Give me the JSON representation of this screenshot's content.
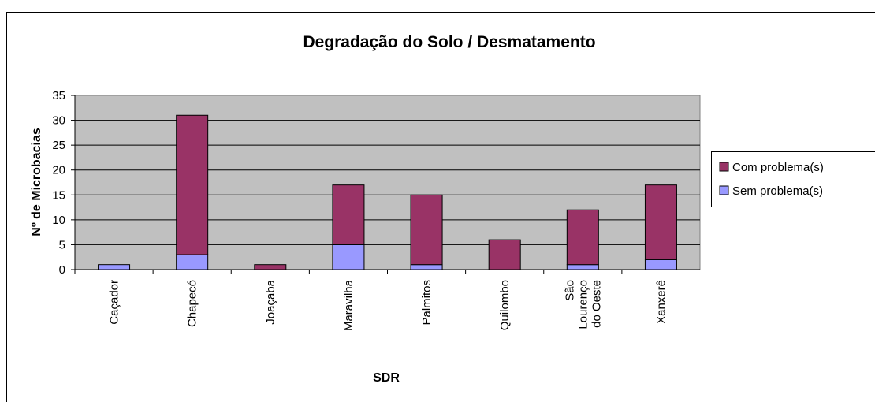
{
  "chart_data": {
    "type": "stacked_bar",
    "title": "Degradação do Solo / Desmatamento",
    "x_label": "SDR",
    "y_label": "Nº de Microbacias",
    "categories": [
      "Caçador",
      "Chapecó",
      "Joaçaba",
      "Maravilha",
      "Palmitos",
      "Quilombo",
      "São Lourenço do Oeste",
      "Xanxerê"
    ],
    "series": [
      {
        "name": "Sem problema(s)",
        "color": "#9999ff",
        "values": [
          1,
          3,
          0,
          5,
          1,
          0,
          1,
          2
        ]
      },
      {
        "name": "Com problema(s)",
        "color": "#993366",
        "values": [
          0,
          28,
          1,
          12,
          14,
          6,
          11,
          15
        ]
      }
    ],
    "ylim": [
      0,
      35
    ],
    "yticks": [
      0,
      5,
      10,
      15,
      20,
      25,
      30,
      35
    ],
    "grid": true,
    "legend": "right"
  }
}
